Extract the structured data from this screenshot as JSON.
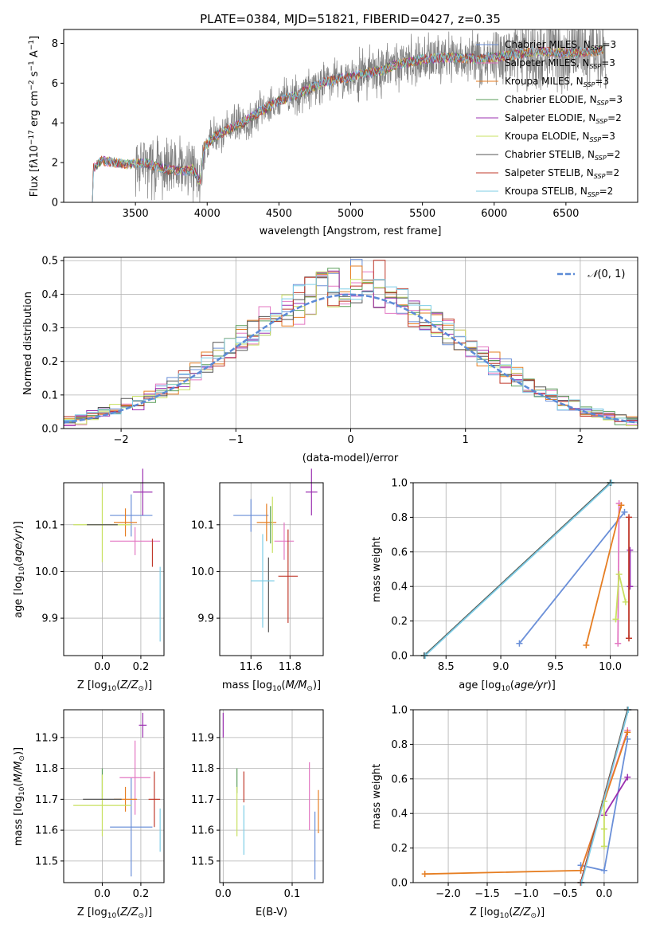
{
  "series_names": [
    "Chabrier MILES, N_SSP=3",
    "Salpeter MILES, N_SSP=3",
    "Kroupa MILES, N_SSP=3",
    "Chabrier ELODIE, N_SSP=3",
    "Salpeter ELODIE, N_SSP=2",
    "Kroupa ELODIE, N_SSP=3",
    "Chabrier STELIB, N_SSP=2",
    "Salpeter STELIB, N_SSP=2",
    "Kroupa STELIB, N_SSP=2"
  ],
  "colors": [
    "#6a8fd8",
    "#e377c2",
    "#e67e22",
    "#5a9e5a",
    "#9b30b0",
    "#c8e060",
    "#555555",
    "#c0392b",
    "#7ecde6"
  ],
  "chart_data": [
    {
      "id": "spectrum",
      "type": "line",
      "title": "PLATE=0384, MJD=51821, FIBERID=0427, z=0.35",
      "xlabel": "wavelength [Angstrom, rest frame]",
      "ylabel": "Flux [f_λ 10^-17 erg cm^-2 s^-1 A^-1]",
      "xlim": [
        3000,
        7000
      ],
      "ylim": [
        0,
        8.7
      ],
      "xticks": [
        3500,
        4000,
        4500,
        5000,
        5500,
        6000,
        6500
      ],
      "yticks": [
        0,
        2,
        4,
        6,
        8
      ],
      "legend": "top-right",
      "continuum_points": [
        [
          3200,
          0
        ],
        [
          3205,
          1.7
        ],
        [
          3260,
          2.1
        ],
        [
          3350,
          2.0
        ],
        [
          3450,
          1.9
        ],
        [
          3550,
          2.0
        ],
        [
          3650,
          1.8
        ],
        [
          3750,
          1.6
        ],
        [
          3850,
          1.6
        ],
        [
          3900,
          1.7
        ],
        [
          3950,
          1.0
        ],
        [
          3980,
          2.8
        ],
        [
          4050,
          3.3
        ],
        [
          4150,
          3.7
        ],
        [
          4250,
          4.0
        ],
        [
          4350,
          4.5
        ],
        [
          4500,
          5.1
        ],
        [
          4650,
          5.5
        ],
        [
          4800,
          6.0
        ],
        [
          4900,
          6.2
        ],
        [
          5000,
          6.3
        ],
        [
          5100,
          6.5
        ],
        [
          5200,
          6.6
        ],
        [
          5300,
          6.9
        ],
        [
          5500,
          7.2
        ],
        [
          5700,
          7.3
        ],
        [
          5900,
          7.2
        ],
        [
          6100,
          7.4
        ],
        [
          6300,
          7.6
        ],
        [
          6500,
          7.5
        ],
        [
          6700,
          7.6
        ],
        [
          6750,
          7.7
        ]
      ],
      "observed_noise_note": "",
      "obs_range": [
        3200,
        6780
      ]
    },
    {
      "id": "residuals",
      "type": "histogram",
      "xlabel": "(data-model)/error",
      "ylabel": "Normed distribution",
      "xlim": [
        -2.5,
        2.5
      ],
      "ylim": [
        0,
        0.51
      ],
      "xticks": [
        -2,
        -1,
        0,
        1,
        2
      ],
      "yticks": [
        0.0,
        0.1,
        0.2,
        0.3,
        0.4,
        0.5
      ],
      "bin_width": 0.1,
      "reference_label": "N(0,1)",
      "legend": "top-right"
    },
    {
      "id": "age_vs_Z",
      "type": "scatter",
      "xlabel": "Z [log10(Z/Z⊙)]",
      "ylabel": "age [log10(age/yr)]",
      "xlim": [
        -0.2,
        0.32
      ],
      "ylim": [
        9.82,
        10.19
      ],
      "xticks": [
        0.0,
        0.2
      ],
      "yticks": [
        9.9,
        10.0,
        10.1
      ],
      "points": [
        [
          0.15,
          10.12,
          0.11,
          0.045
        ],
        [
          0.17,
          10.065,
          0.13,
          0.03
        ],
        [
          0.12,
          10.105,
          0.06,
          0.03
        ],
        [
          0.1,
          10.08,
          0.0,
          0.0
        ],
        [
          0.21,
          10.17,
          0.05,
          0.05
        ],
        [
          0.0,
          10.1,
          0.15,
          0.08
        ],
        [
          0.0,
          10.1,
          0.08,
          0.0
        ],
        [
          0.26,
          10.04,
          0.0,
          0.03
        ],
        [
          0.3,
          9.93,
          0.0,
          0.08
        ]
      ]
    },
    {
      "id": "age_vs_mass",
      "type": "scatter",
      "xlabel": "mass [log10(M/M⊙)]",
      "ylabel": "",
      "xlim": [
        11.44,
        11.97
      ],
      "ylim": [
        9.82,
        10.19
      ],
      "xticks": [
        11.6,
        11.8
      ],
      "yticks": [
        9.9,
        10.0,
        10.1
      ],
      "points": [
        [
          11.6,
          10.12,
          0.09,
          0.035
        ],
        [
          11.77,
          10.065,
          0.05,
          0.04
        ],
        [
          11.68,
          10.105,
          0.05,
          0.04
        ],
        [
          11.7,
          10.1,
          0.0,
          0.04
        ],
        [
          11.91,
          10.17,
          0.03,
          0.05
        ],
        [
          11.71,
          10.1,
          0.0,
          0.06
        ],
        [
          11.69,
          9.95,
          0.0,
          0.08
        ],
        [
          11.79,
          9.99,
          0.05,
          0.1
        ],
        [
          11.66,
          9.98,
          0.06,
          0.1
        ]
      ]
    },
    {
      "id": "massweight_vs_age",
      "type": "line",
      "xlabel": "age [log10(age/yr)]",
      "ylabel": "mass weight",
      "xlim": [
        8.2,
        10.25
      ],
      "ylim": [
        0,
        1
      ],
      "xticks": [
        8.5,
        9.0,
        9.5,
        10.0
      ],
      "yticks": [
        0.0,
        0.2,
        0.4,
        0.6,
        0.8,
        1.0
      ],
      "series": [
        {
          "points": [
            [
              9.17,
              0.07
            ],
            [
              10.13,
              0.83
            ]
          ]
        },
        {
          "points": [
            [
              10.07,
              0.07
            ],
            [
              10.08,
              0.88
            ]
          ]
        },
        {
          "points": [
            [
              9.78,
              0.06
            ],
            [
              10.1,
              0.87
            ]
          ]
        },
        {
          "points": [
            [
              8.3,
              0.0
            ],
            [
              10.0,
              1.0
            ]
          ]
        },
        {
          "points": [
            [
              10.18,
              0.4
            ],
            [
              10.18,
              0.61
            ]
          ]
        },
        {
          "points": [
            [
              10.05,
              0.21
            ],
            [
              10.08,
              0.47
            ],
            [
              10.14,
              0.31
            ]
          ]
        },
        {
          "points": [
            [
              8.3,
              0.0
            ],
            [
              10.0,
              1.0
            ]
          ]
        },
        {
          "points": [
            [
              10.17,
              0.1
            ],
            [
              10.17,
              0.8
            ]
          ]
        },
        {
          "points": [
            [
              8.31,
              0.0
            ],
            [
              10.01,
              1.0
            ]
          ]
        }
      ]
    },
    {
      "id": "mass_vs_Z",
      "type": "scatter",
      "xlabel": "Z [log10(Z/Z⊙)]",
      "ylabel": "mass [log10(M/M⊙)]",
      "xlim": [
        -0.2,
        0.32
      ],
      "ylim": [
        11.43,
        11.99
      ],
      "xticks": [
        0.0,
        0.2
      ],
      "yticks": [
        11.5,
        11.6,
        11.7,
        11.8,
        11.9
      ],
      "points": [
        [
          0.15,
          11.61,
          0.11,
          0.16
        ],
        [
          0.17,
          11.77,
          0.08,
          0.12
        ],
        [
          0.12,
          11.7,
          0.06,
          0.04
        ],
        [
          0.0,
          11.75,
          0.0,
          0.05
        ],
        [
          0.21,
          11.94,
          0.02,
          0.04
        ],
        [
          0.0,
          11.68,
          0.15,
          0.1
        ],
        [
          0.0,
          11.7,
          0.1,
          0.0
        ],
        [
          0.27,
          11.7,
          0.03,
          0.09
        ],
        [
          0.3,
          11.6,
          0.0,
          0.07
        ]
      ]
    },
    {
      "id": "mass_vs_EBV",
      "type": "scatter",
      "xlabel": "E(B-V)",
      "ylabel": "",
      "xlim": [
        -0.005,
        0.145
      ],
      "ylim": [
        11.43,
        11.99
      ],
      "xticks": [
        0.0,
        0.1
      ],
      "yticks": [
        11.5,
        11.6,
        11.7,
        11.8,
        11.9
      ],
      "points": [
        [
          0.133,
          11.55,
          0.0,
          0.11
        ],
        [
          0.125,
          11.71,
          0.0,
          0.11
        ],
        [
          0.138,
          11.66,
          0.0,
          0.07
        ],
        [
          0.02,
          11.76,
          0.0,
          0.04
        ],
        [
          0.0,
          11.94,
          0.0,
          0.04
        ],
        [
          0.02,
          11.66,
          0.0,
          0.08
        ],
        [
          0.03,
          11.7,
          0.0,
          0.0
        ],
        [
          0.03,
          11.74,
          0.0,
          0.05
        ],
        [
          0.03,
          11.6,
          0.0,
          0.08
        ]
      ]
    },
    {
      "id": "massweight_vs_Z",
      "type": "line",
      "xlabel": "Z [log10(Z/Z⊙)]",
      "ylabel": "mass weight",
      "xlim": [
        -2.45,
        0.43
      ],
      "ylim": [
        0,
        1
      ],
      "xticks": [
        -2.0,
        -1.5,
        -1.0,
        -0.5,
        0.0
      ],
      "yticks": [
        0.0,
        0.2,
        0.4,
        0.6,
        0.8,
        1.0
      ],
      "series": [
        {
          "points": [
            [
              -0.3,
              0.1
            ],
            [
              0.0,
              0.07
            ],
            [
              0.3,
              0.83
            ]
          ]
        },
        {
          "points": [
            [
              -0.3,
              0.07
            ],
            [
              0.3,
              0.88
            ]
          ]
        },
        {
          "points": [
            [
              -2.3,
              0.05
            ],
            [
              -0.3,
              0.07
            ],
            [
              0.3,
              0.87
            ]
          ]
        },
        {
          "points": [
            [
              -0.3,
              0.0
            ],
            [
              0.3,
              1.0
            ]
          ]
        },
        {
          "points": [
            [
              0.0,
              0.39
            ],
            [
              0.3,
              0.61
            ]
          ]
        },
        {
          "points": [
            [
              0.0,
              0.21
            ],
            [
              0.0,
              0.31
            ],
            [
              0.0,
              0.47
            ]
          ]
        },
        {
          "points": [
            [
              -0.3,
              0.0
            ],
            [
              0.3,
              1.0
            ]
          ]
        },
        {
          "points": [
            [
              -0.3,
              0.0
            ],
            [
              0.31,
              1.0
            ]
          ]
        },
        {
          "points": [
            [
              -0.29,
              0.0
            ],
            [
              0.31,
              1.0
            ]
          ]
        }
      ]
    }
  ]
}
